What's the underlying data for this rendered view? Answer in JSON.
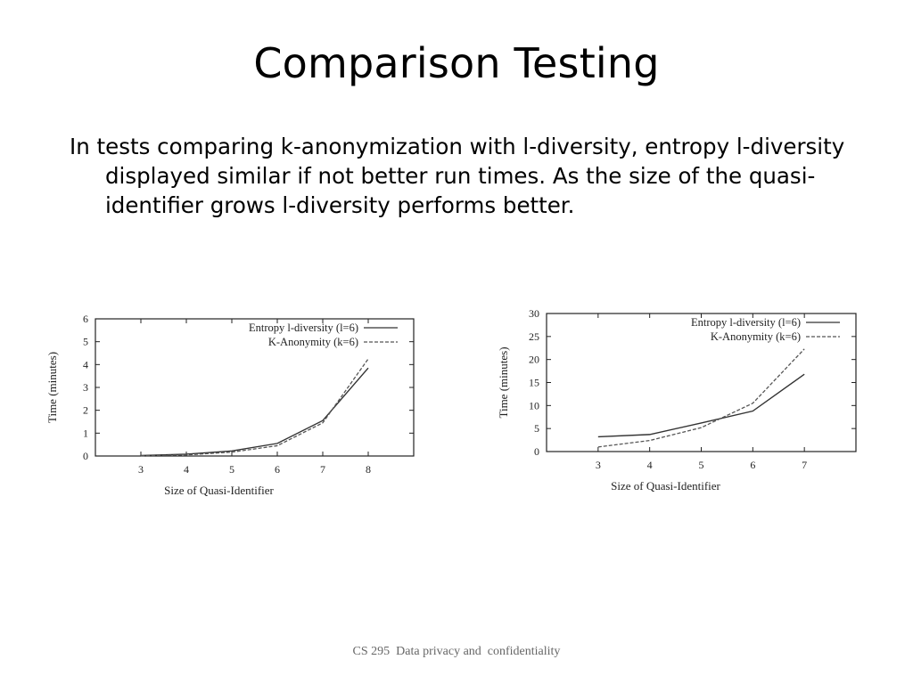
{
  "slide": {
    "title": "Comparison Testing",
    "body": "In tests comparing k-anonymization with l-diversity, entropy l-diversity displayed similar if not better run times.  As the size of the quasi-identifier grows l-diversity performs better.",
    "footer": "CS 295  Data privacy and  confidentiality"
  },
  "chart_data": [
    {
      "type": "line",
      "xlabel": "Size of Quasi-Identifier",
      "ylabel": "Time (minutes)",
      "xticks": [
        3,
        4,
        5,
        6,
        7,
        8
      ],
      "yticks": [
        0,
        1,
        2,
        3,
        4,
        5,
        6
      ],
      "xlim": [
        2,
        9
      ],
      "ylim": [
        0,
        6
      ],
      "legend_position": "top-right",
      "series": [
        {
          "name": "Entropy l-diversity (l=6)",
          "style": "solid",
          "color": "#333333",
          "x": [
            3,
            4,
            5,
            6,
            7,
            8
          ],
          "y": [
            0.02,
            0.08,
            0.22,
            0.55,
            1.55,
            3.85
          ]
        },
        {
          "name": "K-Anonymity (k=6)",
          "style": "dashed",
          "color": "#555555",
          "x": [
            3,
            4,
            5,
            6,
            7,
            8
          ],
          "y": [
            0.01,
            0.05,
            0.17,
            0.45,
            1.45,
            4.25
          ]
        }
      ]
    },
    {
      "type": "line",
      "xlabel": "Size of Quasi-Identifier",
      "ylabel": "Time (minutes)",
      "xticks": [
        3,
        4,
        5,
        6,
        7
      ],
      "yticks": [
        0,
        5,
        10,
        15,
        20,
        25,
        30
      ],
      "xlim": [
        2,
        8
      ],
      "ylim": [
        0,
        30
      ],
      "legend_position": "top-right",
      "series": [
        {
          "name": "Entropy l-diversity (l=6)",
          "style": "solid",
          "color": "#333333",
          "x": [
            3,
            4,
            5,
            6,
            7
          ],
          "y": [
            3.2,
            3.7,
            6.2,
            8.8,
            16.8
          ]
        },
        {
          "name": "K-Anonymity (k=6)",
          "style": "dashed",
          "color": "#555555",
          "x": [
            3,
            4,
            5,
            6,
            7
          ],
          "y": [
            1.0,
            2.4,
            5.2,
            10.5,
            22.3
          ]
        }
      ]
    }
  ]
}
